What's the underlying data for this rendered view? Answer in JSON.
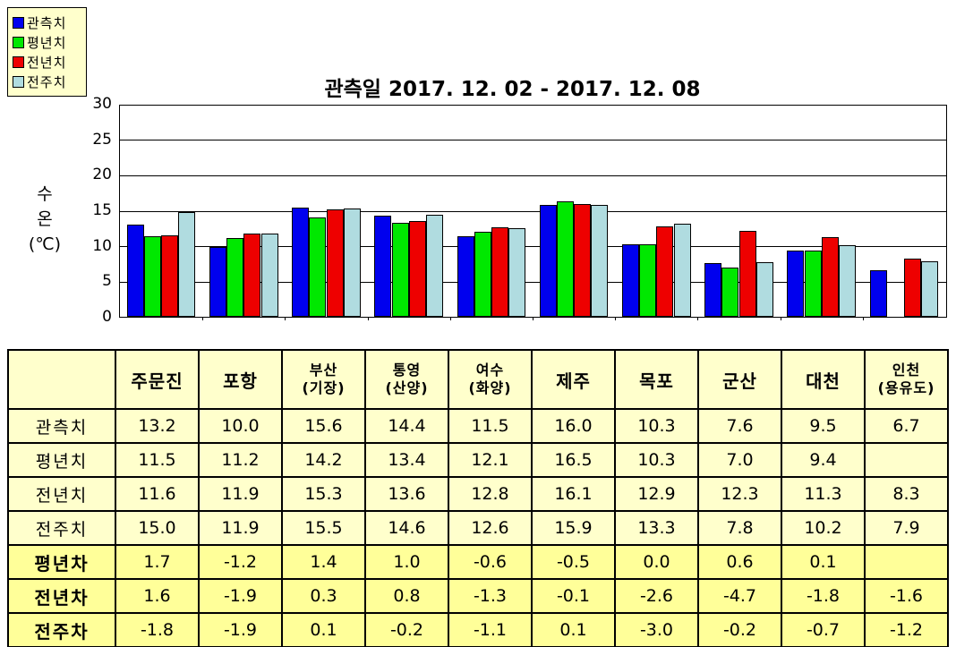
{
  "title": "관측일 2017. 12. 02 - 2017. 12. 08",
  "legend": {
    "items": [
      {
        "label": "관측치",
        "color": "#0000EE"
      },
      {
        "label": "평년치",
        "color": "#00E800"
      },
      {
        "label": "전년치",
        "color": "#EE0000"
      },
      {
        "label": "전주치",
        "color": "#B0DCE0"
      }
    ]
  },
  "y_axis": {
    "title_lines": [
      "수",
      "온",
      "(℃)"
    ],
    "ticks": [
      0,
      5,
      10,
      15,
      20,
      25,
      30
    ],
    "max": 30
  },
  "chart_data": {
    "type": "bar",
    "title": "관측일 2017. 12. 02 - 2017. 12. 08",
    "xlabel": "",
    "ylabel": "수온(℃)",
    "ylim": [
      0,
      30
    ],
    "grid": true,
    "legend_position": "top-left",
    "categories": [
      "주문진",
      "포항",
      "부산(기장)",
      "통영(산양)",
      "여수(화양)",
      "제주",
      "목포",
      "군산",
      "대천",
      "인천(용유도)"
    ],
    "series": [
      {
        "name": "관측치",
        "color": "#0000EE",
        "values": [
          13.2,
          10.0,
          15.6,
          14.4,
          11.5,
          16.0,
          10.3,
          7.6,
          9.5,
          6.7
        ]
      },
      {
        "name": "평년치",
        "color": "#00E800",
        "values": [
          11.5,
          11.2,
          14.2,
          13.4,
          12.1,
          16.5,
          10.3,
          7.0,
          9.4,
          null
        ]
      },
      {
        "name": "전년치",
        "color": "#EE0000",
        "values": [
          11.6,
          11.9,
          15.3,
          13.6,
          12.8,
          16.1,
          12.9,
          12.3,
          11.3,
          8.3
        ]
      },
      {
        "name": "전주치",
        "color": "#B0DCE0",
        "values": [
          15.0,
          11.9,
          15.5,
          14.6,
          12.6,
          15.9,
          13.3,
          7.8,
          10.2,
          7.9
        ]
      }
    ]
  },
  "table": {
    "corner_label": "",
    "columns": [
      {
        "lines": [
          "주문진"
        ]
      },
      {
        "lines": [
          "포항"
        ]
      },
      {
        "lines": [
          "부산",
          "(기장)"
        ]
      },
      {
        "lines": [
          "통영",
          "(산양)"
        ]
      },
      {
        "lines": [
          "여수",
          "(화양)"
        ]
      },
      {
        "lines": [
          "제주"
        ]
      },
      {
        "lines": [
          "목포"
        ]
      },
      {
        "lines": [
          "군산"
        ]
      },
      {
        "lines": [
          "대천"
        ]
      },
      {
        "lines": [
          "인천",
          "(용유도)"
        ]
      }
    ],
    "rows": [
      {
        "label": "관측치",
        "section": "values",
        "cells": [
          "13.2",
          "10.0",
          "15.6",
          "14.4",
          "11.5",
          "16.0",
          "10.3",
          "7.6",
          "9.5",
          "6.7"
        ]
      },
      {
        "label": "평년치",
        "section": "values",
        "cells": [
          "11.5",
          "11.2",
          "14.2",
          "13.4",
          "12.1",
          "16.5",
          "10.3",
          "7.0",
          "9.4",
          ""
        ]
      },
      {
        "label": "전년치",
        "section": "values",
        "cells": [
          "11.6",
          "11.9",
          "15.3",
          "13.6",
          "12.8",
          "16.1",
          "12.9",
          "12.3",
          "11.3",
          "8.3"
        ]
      },
      {
        "label": "전주치",
        "section": "values",
        "cells": [
          "15.0",
          "11.9",
          "15.5",
          "14.6",
          "12.6",
          "15.9",
          "13.3",
          "7.8",
          "10.2",
          "7.9"
        ]
      },
      {
        "label": "평년차",
        "section": "diff",
        "cells": [
          "1.7",
          "-1.2",
          "1.4",
          "1.0",
          "-0.6",
          "-0.5",
          "0.0",
          "0.6",
          "0.1",
          ""
        ]
      },
      {
        "label": "전년차",
        "section": "diff",
        "cells": [
          "1.6",
          "-1.9",
          "0.3",
          "0.8",
          "-1.3",
          "-0.1",
          "-2.6",
          "-4.7",
          "-1.8",
          "-1.6"
        ]
      },
      {
        "label": "전주차",
        "section": "diff",
        "cells": [
          "-1.8",
          "-1.9",
          "0.1",
          "-0.2",
          "-1.1",
          "0.1",
          "-3.0",
          "-0.2",
          "-0.7",
          "-1.2"
        ]
      }
    ]
  },
  "colors": {
    "table_bg_values": "#FFFFCC",
    "table_bg_diff": "#FFFF99",
    "legend_bg": "#FFFFCC",
    "border": "#000000"
  }
}
